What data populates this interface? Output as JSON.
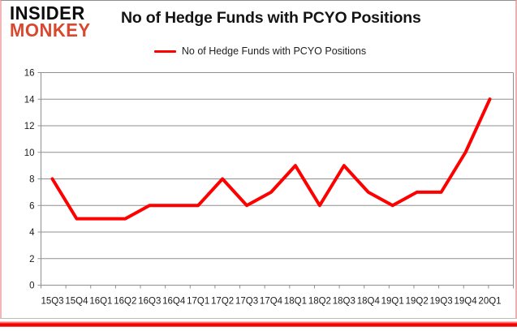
{
  "logo": {
    "line1": "INSIDER",
    "line2": "MONKEY"
  },
  "header": {
    "title": "No of Hedge Funds with PCYO Positions"
  },
  "legend": {
    "label": "No of Hedge Funds with PCYO Positions"
  },
  "chart_data": {
    "type": "line",
    "title": "No of Hedge Funds with PCYO Positions",
    "categories": [
      "15Q3",
      "15Q4",
      "16Q1",
      "16Q2",
      "16Q3",
      "16Q4",
      "17Q1",
      "17Q2",
      "17Q3",
      "17Q4",
      "18Q1",
      "18Q2",
      "18Q3",
      "18Q4",
      "19Q1",
      "19Q2",
      "19Q3",
      "19Q4",
      "20Q1"
    ],
    "series": [
      {
        "name": "No of Hedge Funds with PCYO Positions",
        "values": [
          8,
          5,
          5,
          5,
          6,
          6,
          6,
          8,
          6,
          7,
          9,
          6,
          9,
          7,
          6,
          7,
          7,
          10,
          14
        ],
        "color": "#ff0000"
      }
    ],
    "xlabel": "",
    "ylabel": "",
    "ylim": [
      0,
      16
    ],
    "yticks": [
      0,
      2,
      4,
      6,
      8,
      10,
      12,
      14,
      16
    ],
    "grid": true,
    "legend_position": "top-center"
  },
  "colors": {
    "series_red": "#ff0000",
    "logo_red": "#d9472e",
    "grid_gray": "#8f8f8f",
    "axis_text": "#1c1c1c",
    "bottom_bar_red": "#fb0100"
  }
}
